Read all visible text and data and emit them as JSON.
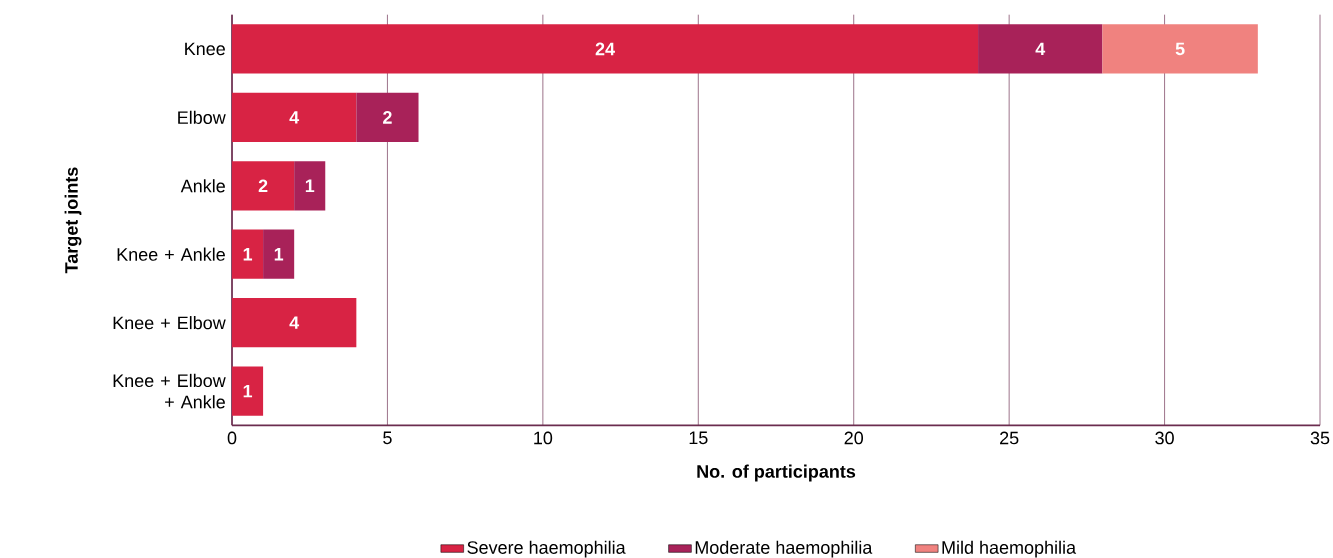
{
  "chart_data": {
    "type": "bar",
    "orientation": "horizontal",
    "stacked": true,
    "categories": [
      "Knee",
      "Elbow",
      "Ankle",
      "Knee + Ankle",
      "Knee + Elbow",
      "Knee + Elbow + Ankle"
    ],
    "series": [
      {
        "name": "Severe haemophilia",
        "color": "#d82344",
        "values": [
          24,
          4,
          2,
          1,
          4,
          1
        ]
      },
      {
        "name": "Moderate haemophilia",
        "color": "#a82259",
        "values": [
          4,
          2,
          1,
          1,
          null,
          null
        ]
      },
      {
        "name": "Mild haemophilia",
        "color": "#f0827f",
        "values": [
          5,
          null,
          null,
          null,
          null,
          null
        ]
      }
    ],
    "xlabel": "No. of participants",
    "ylabel": "Target joints",
    "xlim": [
      0,
      35
    ],
    "xticks": [
      0,
      5,
      10,
      15,
      20,
      25,
      30,
      35
    ],
    "grid": "x",
    "legend": "bottom",
    "data_labels": true
  }
}
